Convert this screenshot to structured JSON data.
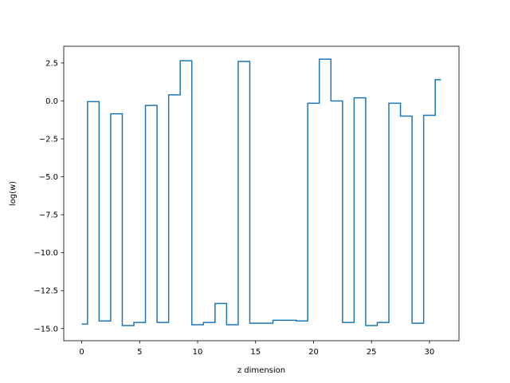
{
  "chart_data": {
    "type": "line",
    "drawstyle": "steps-mid",
    "title": "",
    "xlabel": "z dimension",
    "ylabel": "log(w)",
    "xlim": [
      -1.55,
      32.55
    ],
    "ylim": [
      -15.8,
      3.6
    ],
    "xticks": [
      0,
      5,
      10,
      15,
      20,
      25,
      30
    ],
    "yticks": [
      2.5,
      0.0,
      -2.5,
      -5.0,
      -7.5,
      -10.0,
      -12.5,
      -15.0
    ],
    "ytick_labels": [
      "2.5",
      "0.0",
      "−2.5",
      "−5.0",
      "−7.5",
      "−10.0",
      "−12.5",
      "−15.0"
    ],
    "grid": false,
    "line_color": "#1f77b4",
    "series": [
      {
        "x": [
          0,
          1,
          2,
          3,
          4,
          5,
          6,
          7,
          8,
          9,
          10,
          11,
          12,
          13,
          14,
          15,
          16,
          17,
          18,
          19,
          20,
          21,
          22,
          23,
          24,
          25,
          26,
          27,
          28,
          29,
          30,
          31
        ],
        "values": [
          -14.7,
          -0.05,
          -14.5,
          -0.85,
          -14.8,
          -14.6,
          -0.3,
          -14.6,
          0.4,
          2.65,
          -14.75,
          -14.6,
          -13.35,
          -14.75,
          2.6,
          -14.65,
          -14.65,
          -14.45,
          -14.45,
          -14.5,
          -0.15,
          2.75,
          0.0,
          -14.6,
          0.2,
          -14.8,
          -14.6,
          -0.15,
          -1.0,
          -14.65,
          -0.95,
          1.4
        ]
      }
    ]
  }
}
